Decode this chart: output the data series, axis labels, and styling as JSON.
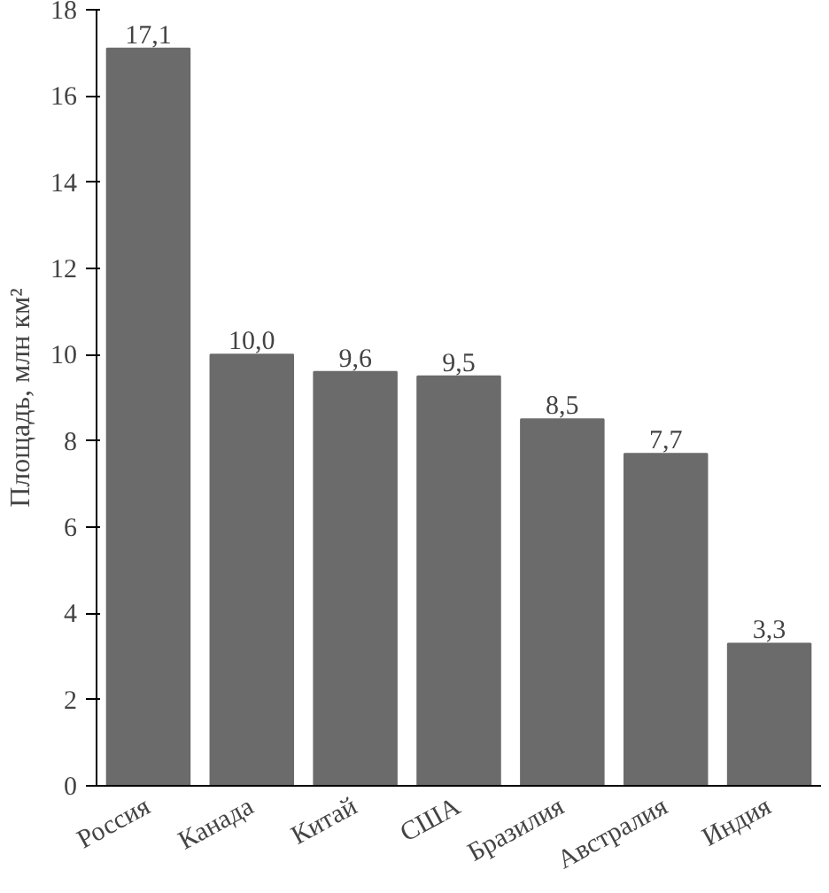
{
  "chart_data": {
    "type": "bar",
    "ylabel": "Площадь, млн км²",
    "categories": [
      "Россия",
      "Канада",
      "Китай",
      "США",
      "Бразилия",
      "Австралия",
      "Индия"
    ],
    "values": [
      17.1,
      10.0,
      9.6,
      9.5,
      8.5,
      7.7,
      3.3
    ],
    "value_labels": [
      "17,1",
      "10,0",
      "9,6",
      "9,5",
      "8,5",
      "7,7",
      "3,3"
    ],
    "color": "#6b6b6b",
    "ylim": [
      0,
      18
    ],
    "yticks": [
      0,
      2,
      4,
      6,
      8,
      10,
      12,
      14,
      16,
      18
    ],
    "grid": false
  }
}
